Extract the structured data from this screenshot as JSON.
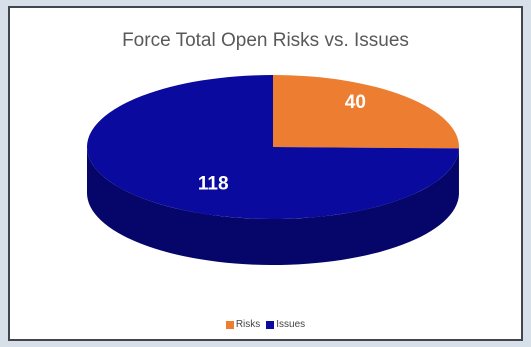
{
  "chart_data": {
    "type": "pie",
    "title": "Force Total Open Risks vs. Issues",
    "slices": [
      {
        "label": "Risks",
        "value": 40,
        "color": "#ed7d31",
        "side_color": "#b45a1c"
      },
      {
        "label": "Issues",
        "value": 118,
        "color": "#0a0a9e",
        "side_color": "#06066a"
      }
    ],
    "legend_position": "bottom",
    "style": "3d"
  }
}
